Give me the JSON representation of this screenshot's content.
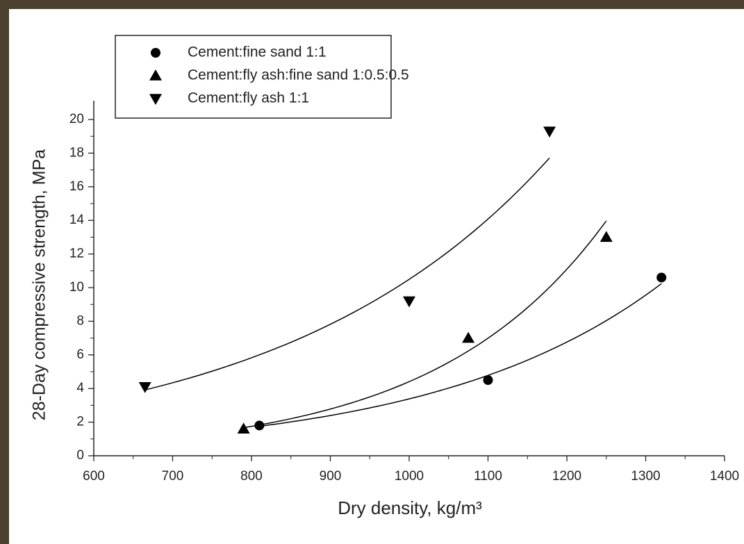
{
  "chart_data": {
    "type": "scatter",
    "xlabel": "Dry density, kg/m³",
    "ylabel": "28-Day compressive strength, MPa",
    "xlim": [
      600,
      1400
    ],
    "xticks": [
      600,
      700,
      800,
      900,
      1000,
      1100,
      1200,
      1300,
      1400
    ],
    "ylim": [
      0,
      20
    ],
    "yticks": [
      0,
      2,
      4,
      6,
      8,
      10,
      12,
      14,
      16,
      18,
      20
    ],
    "fit": "exponential",
    "legend": "top-left",
    "series": [
      {
        "name": "Cement:fine sand 1:1",
        "marker": "circle",
        "color": "#000000",
        "x": [
          810,
          1100,
          1320
        ],
        "values": [
          1.8,
          4.5,
          10.6
        ]
      },
      {
        "name": "Cement:fly ash:fine sand 1:0.5:0.5",
        "marker": "triangle-up",
        "color": "#000000",
        "x": [
          790,
          1075,
          1250
        ],
        "values": [
          1.6,
          7.0,
          13.0
        ]
      },
      {
        "name": "Cement:fly ash 1:1",
        "marker": "triangle-down",
        "color": "#000000",
        "x": [
          665,
          1000,
          1178
        ],
        "values": [
          4.1,
          9.2,
          19.3
        ]
      }
    ]
  }
}
